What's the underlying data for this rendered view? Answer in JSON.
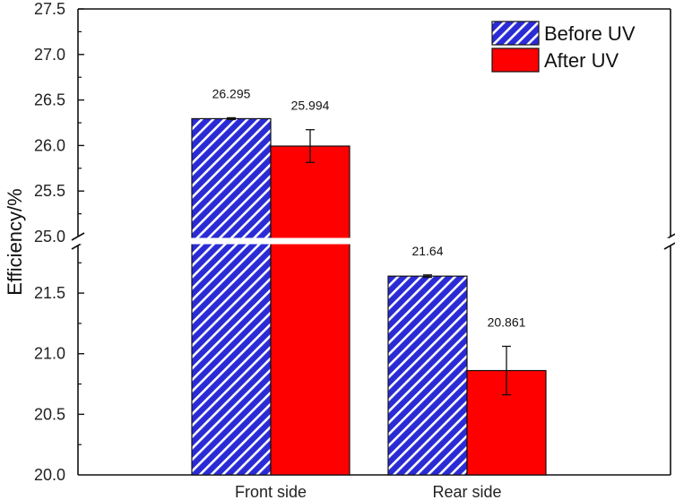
{
  "chart_data": {
    "type": "bar",
    "categories": [
      "Front side",
      "Rear side"
    ],
    "series": [
      {
        "name": "Before UV",
        "values": [
          26.295,
          21.64
        ],
        "errors": [
          0.01,
          0.01
        ],
        "labels": [
          "26.295",
          "21.64"
        ],
        "color": "#2b2bd6",
        "pattern": "diagonal-hatch"
      },
      {
        "name": "After UV",
        "values": [
          25.994,
          20.861
        ],
        "errors": [
          0.18,
          0.2
        ],
        "labels": [
          "25.994",
          "20.861"
        ],
        "color": "#ff0000",
        "pattern": "solid"
      }
    ],
    "xlabel": "",
    "ylabel": "Efficiency/%",
    "axis_break": {
      "lower_max": 21.9,
      "upper_min": 25.0
    },
    "ylim_lower": [
      20.0,
      21.9
    ],
    "ylim_upper": [
      25.0,
      27.5
    ],
    "yticks_lower": [
      "20.0",
      "20.5",
      "21.0",
      "21.5"
    ],
    "yticks_upper": [
      "25.0",
      "25.5",
      "26.0",
      "26.5",
      "27.0",
      "27.5"
    ],
    "grid": false,
    "legend_position": "top-right"
  }
}
